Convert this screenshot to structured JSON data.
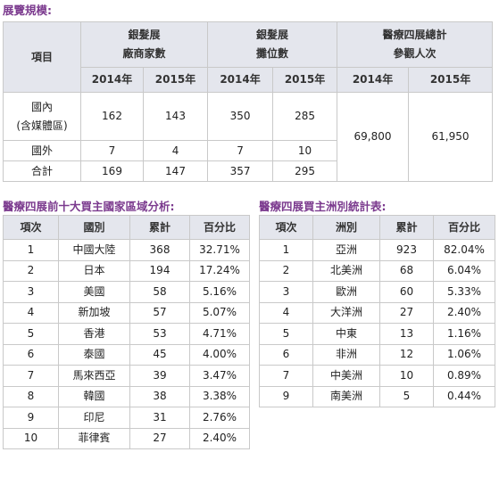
{
  "heading": "展覽規模:",
  "scale_table": {
    "item_header": "項目",
    "groups": [
      [
        "銀髮展",
        "廠商家數"
      ],
      [
        "銀髮展",
        "攤位數"
      ],
      [
        "醫療四展總計",
        "參觀人次"
      ]
    ],
    "years": [
      "2014年",
      "2015年",
      "2014年",
      "2015年",
      "2014年",
      "2015年"
    ],
    "rows": [
      {
        "label": [
          "國內",
          "(含媒體區)"
        ],
        "values": [
          162,
          143,
          350,
          285
        ]
      },
      {
        "label": [
          "國外"
        ],
        "values": [
          7,
          4,
          7,
          10
        ]
      },
      {
        "label": [
          "合計"
        ],
        "values": [
          169,
          147,
          357,
          295
        ]
      }
    ],
    "visitors": [
      "69,800",
      "61,950"
    ]
  },
  "country_table": {
    "title": "醫療四展前十大買主國家區域分析:",
    "columns": [
      "項次",
      "國別",
      "累計",
      "百分比"
    ],
    "rows": [
      [
        1,
        "中國大陸",
        368,
        "32.71%"
      ],
      [
        2,
        "日本",
        194,
        "17.24%"
      ],
      [
        3,
        "美國",
        58,
        "5.16%"
      ],
      [
        4,
        "新加坡",
        57,
        "5.07%"
      ],
      [
        5,
        "香港",
        53,
        "4.71%"
      ],
      [
        6,
        "泰國",
        45,
        "4.00%"
      ],
      [
        7,
        "馬來西亞",
        39,
        "3.47%"
      ],
      [
        8,
        "韓國",
        38,
        "3.38%"
      ],
      [
        9,
        "印尼",
        31,
        "2.76%"
      ],
      [
        10,
        "菲律賓",
        27,
        "2.40%"
      ]
    ]
  },
  "continent_table": {
    "title": "醫療四展買主洲別統計表:",
    "columns": [
      "項次",
      "洲別",
      "累計",
      "百分比"
    ],
    "rows": [
      [
        1,
        "亞洲",
        923,
        "82.04%"
      ],
      [
        2,
        "北美洲",
        68,
        "6.04%"
      ],
      [
        3,
        "歐洲",
        60,
        "5.33%"
      ],
      [
        4,
        "大洋洲",
        27,
        "2.40%"
      ],
      [
        5,
        "中東",
        13,
        "1.16%"
      ],
      [
        6,
        "非洲",
        12,
        "1.06%"
      ],
      [
        7,
        "中美洲",
        10,
        "0.89%"
      ],
      [
        9,
        "南美洲",
        5,
        "0.44%"
      ]
    ]
  }
}
